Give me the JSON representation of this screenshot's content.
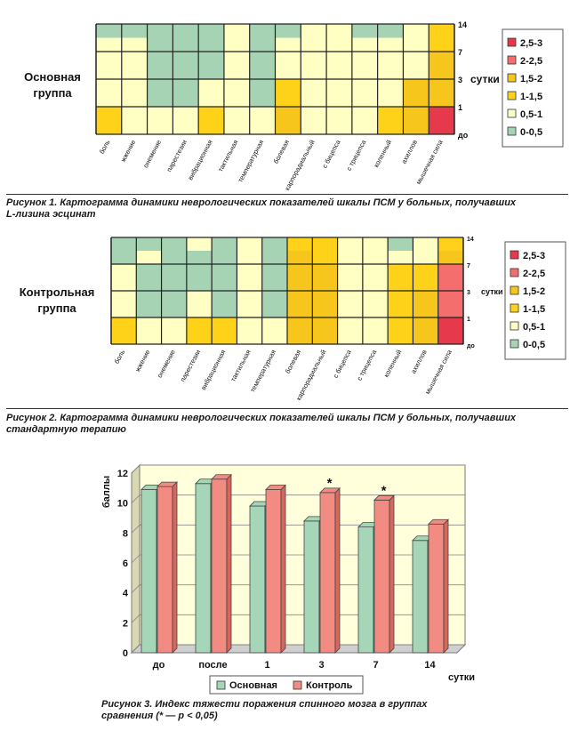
{
  "palette": {
    "lvl_0_05": "#a6d3b3",
    "lvl_05_1": "#ffffc4",
    "lvl_1_15": "#ffd21a",
    "lvl_15_2": "#f7c61c",
    "lvl_2_25": "#f46e6e",
    "lvl_25_3": "#e63a4c",
    "bar_main": "#a6d6b8",
    "bar_control": "#f28c82",
    "plot_bg": "#ffffdc"
  },
  "figure1": {
    "group_label": [
      "Основная",
      "группа"
    ],
    "caption": [
      "Рисунок 1. Картограмма динамики неврологических показателей шкалы ПСМ у больных, получавших",
      "L-лизина эсцинат"
    ]
  },
  "figure2": {
    "group_label": [
      "Контрольная",
      "группа"
    ],
    "caption": [
      "Рисунок 2. Картограмма динамики неврологических показателей шкалы ПСМ у больных, получавших",
      "стандартную терапию"
    ]
  },
  "figure3": {
    "caption": [
      "Рисунок 3. Индекс тяжести поражения спинного мозга в группах",
      "сравнения (* — p < 0,05)"
    ]
  },
  "chart_data": [
    {
      "type": "heatmap",
      "columns": [
        "боль",
        "жжение",
        "онемение",
        "парестезии",
        "вибрационная",
        "тактильная",
        "температурная",
        "болевая",
        "карпорадиальный",
        "с бицепса",
        "с трицепса",
        "коленный",
        "ахиллов",
        "мышечная сила"
      ],
      "rows": [
        "до",
        "1",
        "3",
        "7",
        "14"
      ],
      "y_side_label": "сутки",
      "legend": [
        "2,5-3",
        "2-2,5",
        "1,5-2",
        "1-1,5",
        "0,5-1",
        "0-0,5"
      ],
      "values": [
        [
          1.2,
          0.7,
          0.7,
          0.6,
          1.0,
          0.7,
          0.6,
          1.5,
          0.7,
          0.7,
          0.7,
          1.2,
          1.5,
          2.6
        ],
        [
          0.7,
          0.7,
          0.3,
          0.3,
          0.7,
          0.5,
          0.3,
          1.2,
          0.7,
          0.7,
          0.7,
          0.7,
          1.5,
          1.5
        ],
        [
          0.7,
          0.7,
          0.3,
          0.3,
          0.3,
          0.5,
          0.3,
          0.9,
          0.7,
          0.7,
          0.7,
          0.7,
          0.8,
          1.5
        ],
        [
          0.7,
          0.7,
          0.3,
          0.3,
          0.3,
          0.5,
          0.3,
          0.6,
          0.7,
          0.7,
          0.5,
          0.6,
          0.7,
          1.2
        ],
        [
          0.3,
          0.3,
          0.3,
          0.3,
          0.3,
          0.7,
          0.3,
          0.3,
          0.7,
          0.7,
          0.3,
          0.3,
          0.7,
          1.2
        ]
      ]
    },
    {
      "type": "heatmap",
      "columns": [
        "боль",
        "жжение",
        "онемение",
        "парестезии",
        "вибрационная",
        "тактильная",
        "температурная",
        "болевая",
        "карпорадиальный",
        "с бицепса",
        "с трицепса",
        "коленный",
        "ахиллов",
        "мышечная сила"
      ],
      "rows": [
        "до",
        "1",
        "3",
        "7",
        "14"
      ],
      "y_side_label": "сутки",
      "legend": [
        "2,5-3",
        "2-2,5",
        "1,5-2",
        "1-1,5",
        "0,5-1",
        "0-0,5"
      ],
      "values": [
        [
          1.2,
          0.7,
          0.7,
          1.0,
          1.2,
          0.7,
          0.7,
          1.5,
          1.5,
          0.7,
          0.7,
          1.2,
          1.5,
          2.6
        ],
        [
          0.7,
          0.3,
          0.3,
          0.6,
          0.3,
          0.7,
          0.3,
          1.5,
          1.5,
          0.7,
          0.7,
          1.2,
          1.5,
          2.3
        ],
        [
          0.7,
          0.3,
          0.3,
          0.3,
          0.3,
          0.7,
          0.3,
          1.5,
          1.5,
          0.7,
          0.7,
          1.2,
          1.2,
          2.1
        ],
        [
          0.3,
          0.7,
          0.3,
          0.3,
          0.3,
          0.7,
          0.3,
          1.5,
          1.2,
          0.7,
          0.7,
          0.7,
          0.7,
          1.8
        ],
        [
          0.3,
          0.3,
          0.3,
          0.7,
          0.3,
          0.7,
          0.3,
          1.2,
          1.2,
          0.7,
          0.7,
          0.4,
          0.7,
          1.2
        ]
      ]
    },
    {
      "type": "bar",
      "categories": [
        "до",
        "после",
        "1",
        "3",
        "7",
        "14"
      ],
      "xlabel": "сутки",
      "ylabel": "баллы",
      "ylim": [
        0,
        12
      ],
      "yticks": [
        "0",
        "2",
        "4",
        "6",
        "8",
        "10",
        "12"
      ],
      "series": [
        {
          "name": "Основная",
          "values": [
            10.9,
            11.3,
            9.8,
            8.8,
            8.4,
            7.5
          ]
        },
        {
          "name": "Контроль",
          "values": [
            11.1,
            11.6,
            10.9,
            10.7,
            10.2,
            8.6
          ]
        }
      ],
      "annotations": [
        {
          "category": "3",
          "text": "*"
        },
        {
          "category": "7",
          "text": "*"
        }
      ],
      "legend_position": "bottom",
      "grid": true
    }
  ]
}
